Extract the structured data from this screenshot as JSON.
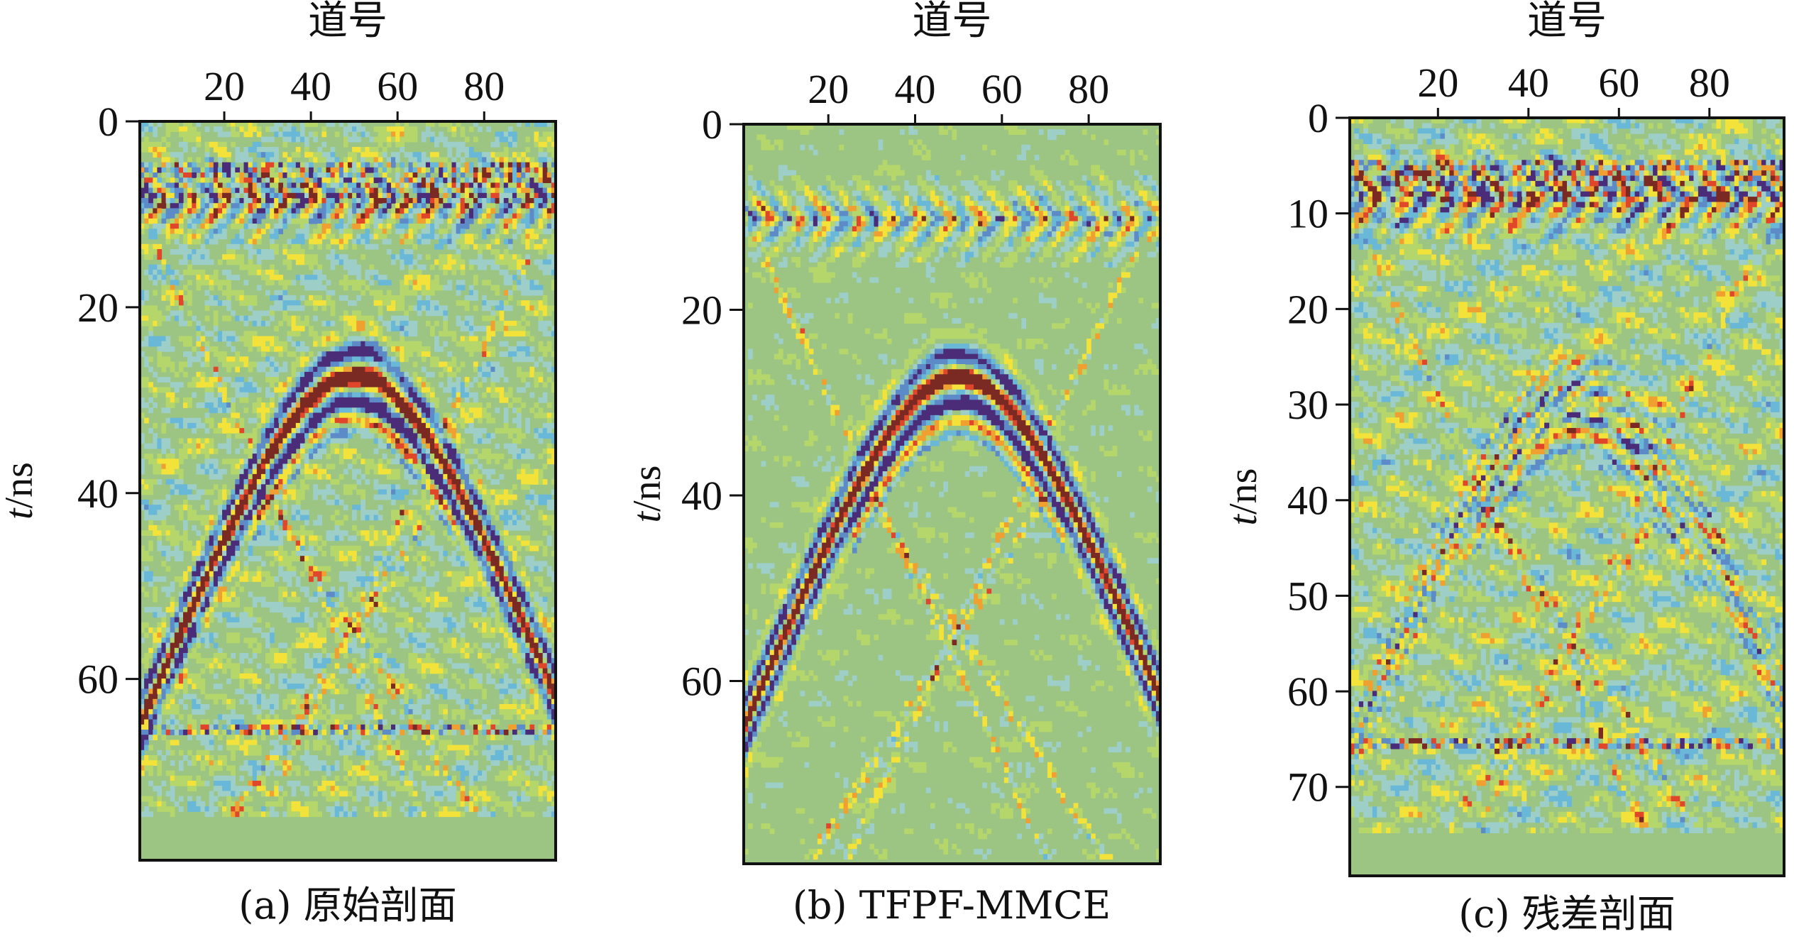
{
  "colormap": {
    "name": "jet-like seismic",
    "stops": [
      "#4a2c78",
      "#5c8bc8",
      "#6ab8d8",
      "#9dcfc8",
      "#9cc584",
      "#b5d66a",
      "#f2e23a",
      "#f0a030",
      "#e0462a",
      "#7a2a22"
    ],
    "background": "#9cc584"
  },
  "chart_data": [
    {
      "type": "heatmap",
      "id": "a",
      "title": "道号",
      "caption": "(a) 原始剖面",
      "xlabel": "道号",
      "ylabel_italic": "t",
      "ylabel_rest": "/ns",
      "xlim": [
        1,
        96
      ],
      "ylim": [
        0,
        79.5
      ],
      "x_ticks": [
        20,
        40,
        60,
        80
      ],
      "y_ticks": [
        0,
        20,
        40,
        60
      ],
      "data_end_time": 75,
      "noise_level": 1.0,
      "features": {
        "hyperbola_apex_trace": 50,
        "hyperbola_apex_time": 27,
        "hyperbola_amplitude": 1.0,
        "direct_wave_time": 8,
        "horizontal_bands_time": [
          5,
          6.5,
          8,
          65
        ],
        "dipping_events": true
      }
    },
    {
      "type": "heatmap",
      "id": "b",
      "title": "道号",
      "caption": "(b) TFPF-MMCE",
      "xlabel": "道号",
      "ylabel_italic": "t",
      "ylabel_rest": "/ns",
      "xlim": [
        1,
        96
      ],
      "ylim": [
        0,
        79.7
      ],
      "x_ticks": [
        20,
        40,
        60,
        80
      ],
      "y_ticks": [
        0,
        20,
        40,
        60
      ],
      "data_end_time": 79.7,
      "noise_level": 0.45,
      "features": {
        "hyperbola_apex_trace": 50,
        "hyperbola_apex_time": 27,
        "hyperbola_amplitude": 1.0,
        "direct_wave_time": 10,
        "horizontal_bands_time": [],
        "dipping_events": true
      }
    },
    {
      "type": "heatmap",
      "id": "c",
      "title": "道号",
      "caption": "(c) 残差剖面",
      "xlabel": "道号",
      "ylabel_italic": "t",
      "ylabel_rest": "/ns",
      "xlim": [
        1,
        96
      ],
      "ylim": [
        0,
        79.3
      ],
      "x_ticks": [
        20,
        40,
        60,
        80
      ],
      "y_ticks": [
        0,
        10,
        20,
        30,
        40,
        50,
        60,
        70
      ],
      "data_end_time": 75,
      "noise_level": 1.1,
      "features": {
        "hyperbola_apex_trace": 51,
        "hyperbola_apex_time": 28,
        "hyperbola_amplitude": 0.55,
        "direct_wave_time": 8,
        "horizontal_bands_time": [
          5,
          6.5,
          8,
          65
        ],
        "dipping_events": true
      }
    }
  ]
}
